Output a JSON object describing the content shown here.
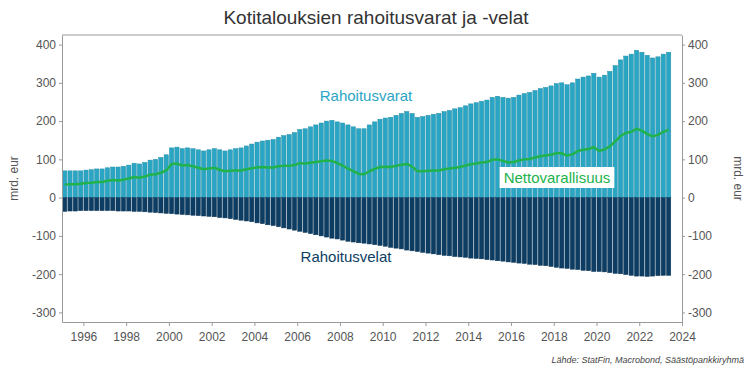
{
  "chart_data": {
    "type": "bar",
    "title": "Kotitalouksien rahoitusvarat ja -velat",
    "y_label": "mrd. eur",
    "y2_label": "mrd. eur",
    "source": "Lähde: StatFin, Macrobond, Säästöpankkiryhmä",
    "grid": false,
    "xlim": [
      1995,
      2024
    ],
    "xticks": [
      1996,
      1998,
      2000,
      2002,
      2004,
      2006,
      2008,
      2010,
      2012,
      2014,
      2016,
      2018,
      2020,
      2022,
      2024
    ],
    "ylim": [
      -325,
      425
    ],
    "yticks": [
      -300,
      -200,
      -100,
      0,
      100,
      200,
      300,
      400
    ],
    "y2lim": [
      -325,
      425
    ],
    "y2ticks": [
      -300,
      -200,
      -100,
      0,
      100,
      200,
      300,
      400
    ],
    "x": [
      1995.125,
      1995.375,
      1995.625,
      1995.875,
      1996.125,
      1996.375,
      1996.625,
      1996.875,
      1997.125,
      1997.375,
      1997.625,
      1997.875,
      1998.125,
      1998.375,
      1998.625,
      1998.875,
      1999.125,
      1999.375,
      1999.625,
      1999.875,
      2000.125,
      2000.375,
      2000.625,
      2000.875,
      2001.125,
      2001.375,
      2001.625,
      2001.875,
      2002.125,
      2002.375,
      2002.625,
      2002.875,
      2003.125,
      2003.375,
      2003.625,
      2003.875,
      2004.125,
      2004.375,
      2004.625,
      2004.875,
      2005.125,
      2005.375,
      2005.625,
      2005.875,
      2006.125,
      2006.375,
      2006.625,
      2006.875,
      2007.125,
      2007.375,
      2007.625,
      2007.875,
      2008.125,
      2008.375,
      2008.625,
      2008.875,
      2009.125,
      2009.375,
      2009.625,
      2009.875,
      2010.125,
      2010.375,
      2010.625,
      2010.875,
      2011.125,
      2011.375,
      2011.625,
      2011.875,
      2012.125,
      2012.375,
      2012.625,
      2012.875,
      2013.125,
      2013.375,
      2013.625,
      2013.875,
      2014.125,
      2014.375,
      2014.625,
      2014.875,
      2015.125,
      2015.375,
      2015.625,
      2015.875,
      2016.125,
      2016.375,
      2016.625,
      2016.875,
      2017.125,
      2017.375,
      2017.625,
      2017.875,
      2018.125,
      2018.375,
      2018.625,
      2018.875,
      2019.125,
      2019.375,
      2019.625,
      2019.875,
      2020.125,
      2020.375,
      2020.625,
      2020.875,
      2021.125,
      2021.375,
      2021.625,
      2021.875,
      2022.125,
      2022.375,
      2022.625,
      2022.875,
      2023.125,
      2023.375
    ],
    "series": [
      {
        "name": "Rahoitusvarat",
        "type": "bar",
        "color": "#2aa6c4",
        "values": [
          70,
          70,
          70,
          70,
          72,
          73,
          75,
          75,
          78,
          80,
          80,
          82,
          85,
          90,
          88,
          92,
          98,
          100,
          105,
          112,
          130,
          132,
          128,
          130,
          128,
          125,
          122,
          125,
          128,
          125,
          122,
          125,
          128,
          130,
          135,
          140,
          145,
          148,
          150,
          152,
          158,
          162,
          165,
          170,
          178,
          180,
          185,
          190,
          195,
          200,
          202,
          198,
          195,
          190,
          185,
          180,
          180,
          190,
          198,
          205,
          208,
          210,
          215,
          220,
          225,
          220,
          210,
          212,
          215,
          218,
          220,
          225,
          228,
          232,
          235,
          240,
          245,
          248,
          252,
          255,
          262,
          265,
          262,
          260,
          262,
          268,
          272,
          275,
          280,
          285,
          288,
          292,
          298,
          300,
          295,
          300,
          310,
          315,
          318,
          325,
          315,
          320,
          330,
          345,
          360,
          370,
          375,
          385,
          380,
          372,
          365,
          368,
          375,
          380
        ]
      },
      {
        "name": "Rahoitusvelat",
        "type": "bar",
        "color": "#0d3d63",
        "values": [
          -36,
          -35,
          -35,
          -34,
          -34,
          -34,
          -34,
          -34,
          -34,
          -34,
          -35,
          -35,
          -35,
          -36,
          -36,
          -37,
          -38,
          -39,
          -40,
          -41,
          -42,
          -43,
          -44,
          -45,
          -46,
          -47,
          -48,
          -49,
          -50,
          -52,
          -53,
          -55,
          -57,
          -59,
          -61,
          -63,
          -66,
          -68,
          -71,
          -73,
          -76,
          -79,
          -82,
          -85,
          -88,
          -91,
          -94,
          -97,
          -100,
          -103,
          -106,
          -108,
          -111,
          -114,
          -116,
          -118,
          -119,
          -121,
          -123,
          -125,
          -127,
          -130,
          -132,
          -134,
          -137,
          -139,
          -141,
          -143,
          -145,
          -147,
          -149,
          -151,
          -152,
          -154,
          -155,
          -156,
          -158,
          -159,
          -160,
          -162,
          -163,
          -165,
          -166,
          -168,
          -169,
          -171,
          -172,
          -174,
          -175,
          -177,
          -178,
          -180,
          -182,
          -184,
          -185,
          -187,
          -188,
          -190,
          -191,
          -193,
          -193,
          -194,
          -196,
          -198,
          -199,
          -201,
          -203,
          -205,
          -205,
          -206,
          -205,
          -204,
          -203,
          -203
        ]
      },
      {
        "name": "Nettovarallisuus",
        "type": "line",
        "color": "#22b24c",
        "values": [
          34,
          35,
          35,
          36,
          38,
          39,
          41,
          41,
          44,
          46,
          45,
          47,
          50,
          54,
          52,
          55,
          60,
          61,
          65,
          71,
          88,
          89,
          84,
          85,
          82,
          78,
          74,
          76,
          78,
          73,
          69,
          70,
          71,
          71,
          74,
          77,
          79,
          80,
          79,
          79,
          82,
          83,
          83,
          85,
          90,
          89,
          91,
          93,
          95,
          97,
          96,
          90,
          84,
          76,
          69,
          62,
          61,
          69,
          75,
          80,
          81,
          80,
          83,
          86,
          88,
          81,
          69,
          69,
          70,
          71,
          71,
          74,
          76,
          78,
          80,
          84,
          87,
          89,
          92,
          93,
          99,
          100,
          96,
          92,
          93,
          97,
          100,
          101,
          105,
          108,
          110,
          112,
          116,
          116,
          110,
          113,
          122,
          125,
          127,
          132,
          122,
          126,
          134,
          147,
          161,
          169,
          172,
          180,
          175,
          166,
          160,
          164,
          172,
          177
        ]
      }
    ]
  }
}
